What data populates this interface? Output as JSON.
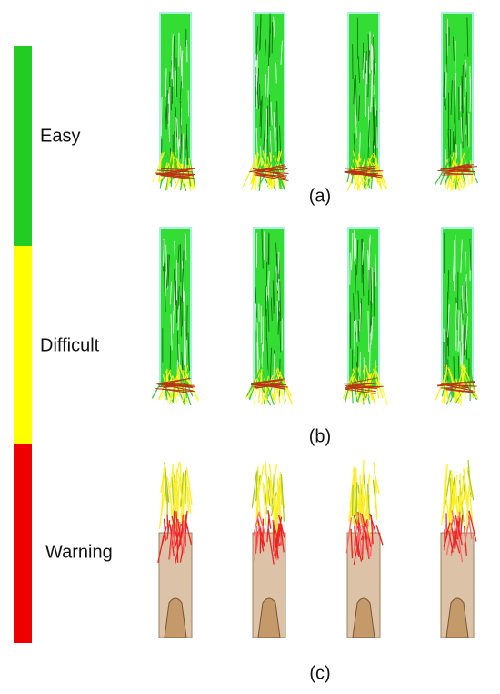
{
  "legend": [
    "Easy",
    "Difficult",
    "Warning"
  ],
  "panels": [
    "(a)",
    "(b)",
    "(c)"
  ]
}
